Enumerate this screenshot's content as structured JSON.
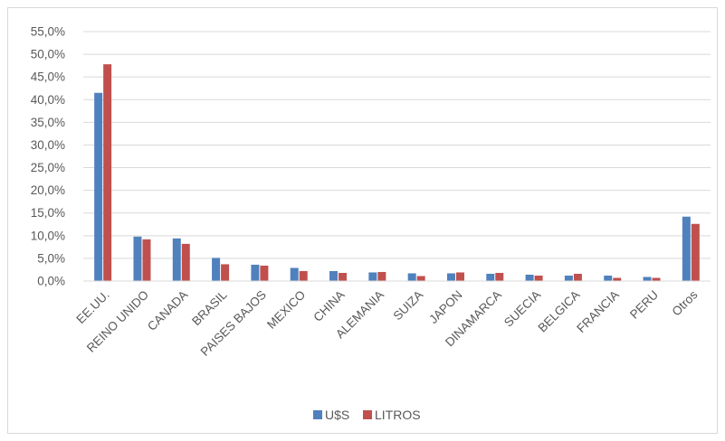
{
  "chart_data": {
    "type": "bar",
    "title": "",
    "xlabel": "",
    "ylabel": "",
    "categories": [
      "EE.UU.",
      "REINO UNIDO",
      "CANADA",
      "BRASIL",
      "PAISES BAJOS",
      "MEXICO",
      "CHINA",
      "ALEMANIA",
      "SUIZA",
      "JAPON",
      "DINAMARCA",
      "SUECIA",
      "BELGICA",
      "FRANCIA",
      "PERU",
      "Otros"
    ],
    "series": [
      {
        "name": "U$S",
        "color": "#4f81bd",
        "values": [
          41.5,
          9.8,
          9.4,
          5.1,
          3.6,
          2.9,
          2.2,
          1.9,
          1.7,
          1.7,
          1.6,
          1.4,
          1.2,
          1.2,
          0.9,
          14.2
        ]
      },
      {
        "name": "LITROS",
        "color": "#c0504d",
        "values": [
          47.8,
          9.2,
          8.2,
          3.7,
          3.4,
          2.2,
          1.8,
          2.0,
          1.1,
          1.9,
          1.8,
          1.2,
          1.6,
          0.7,
          0.7,
          12.6
        ]
      }
    ],
    "ylim": [
      0,
      55
    ],
    "yticks": [
      "0,0%",
      "5,0%",
      "10,0%",
      "15,0%",
      "20,0%",
      "25,0%",
      "30,0%",
      "35,0%",
      "40,0%",
      "45,0%",
      "50,0%",
      "55,0%"
    ],
    "ytick_values": [
      0,
      5,
      10,
      15,
      20,
      25,
      30,
      35,
      40,
      45,
      50,
      55
    ],
    "grid": true,
    "legend": "bottom",
    "gridline_color": "#d9d9d9"
  }
}
